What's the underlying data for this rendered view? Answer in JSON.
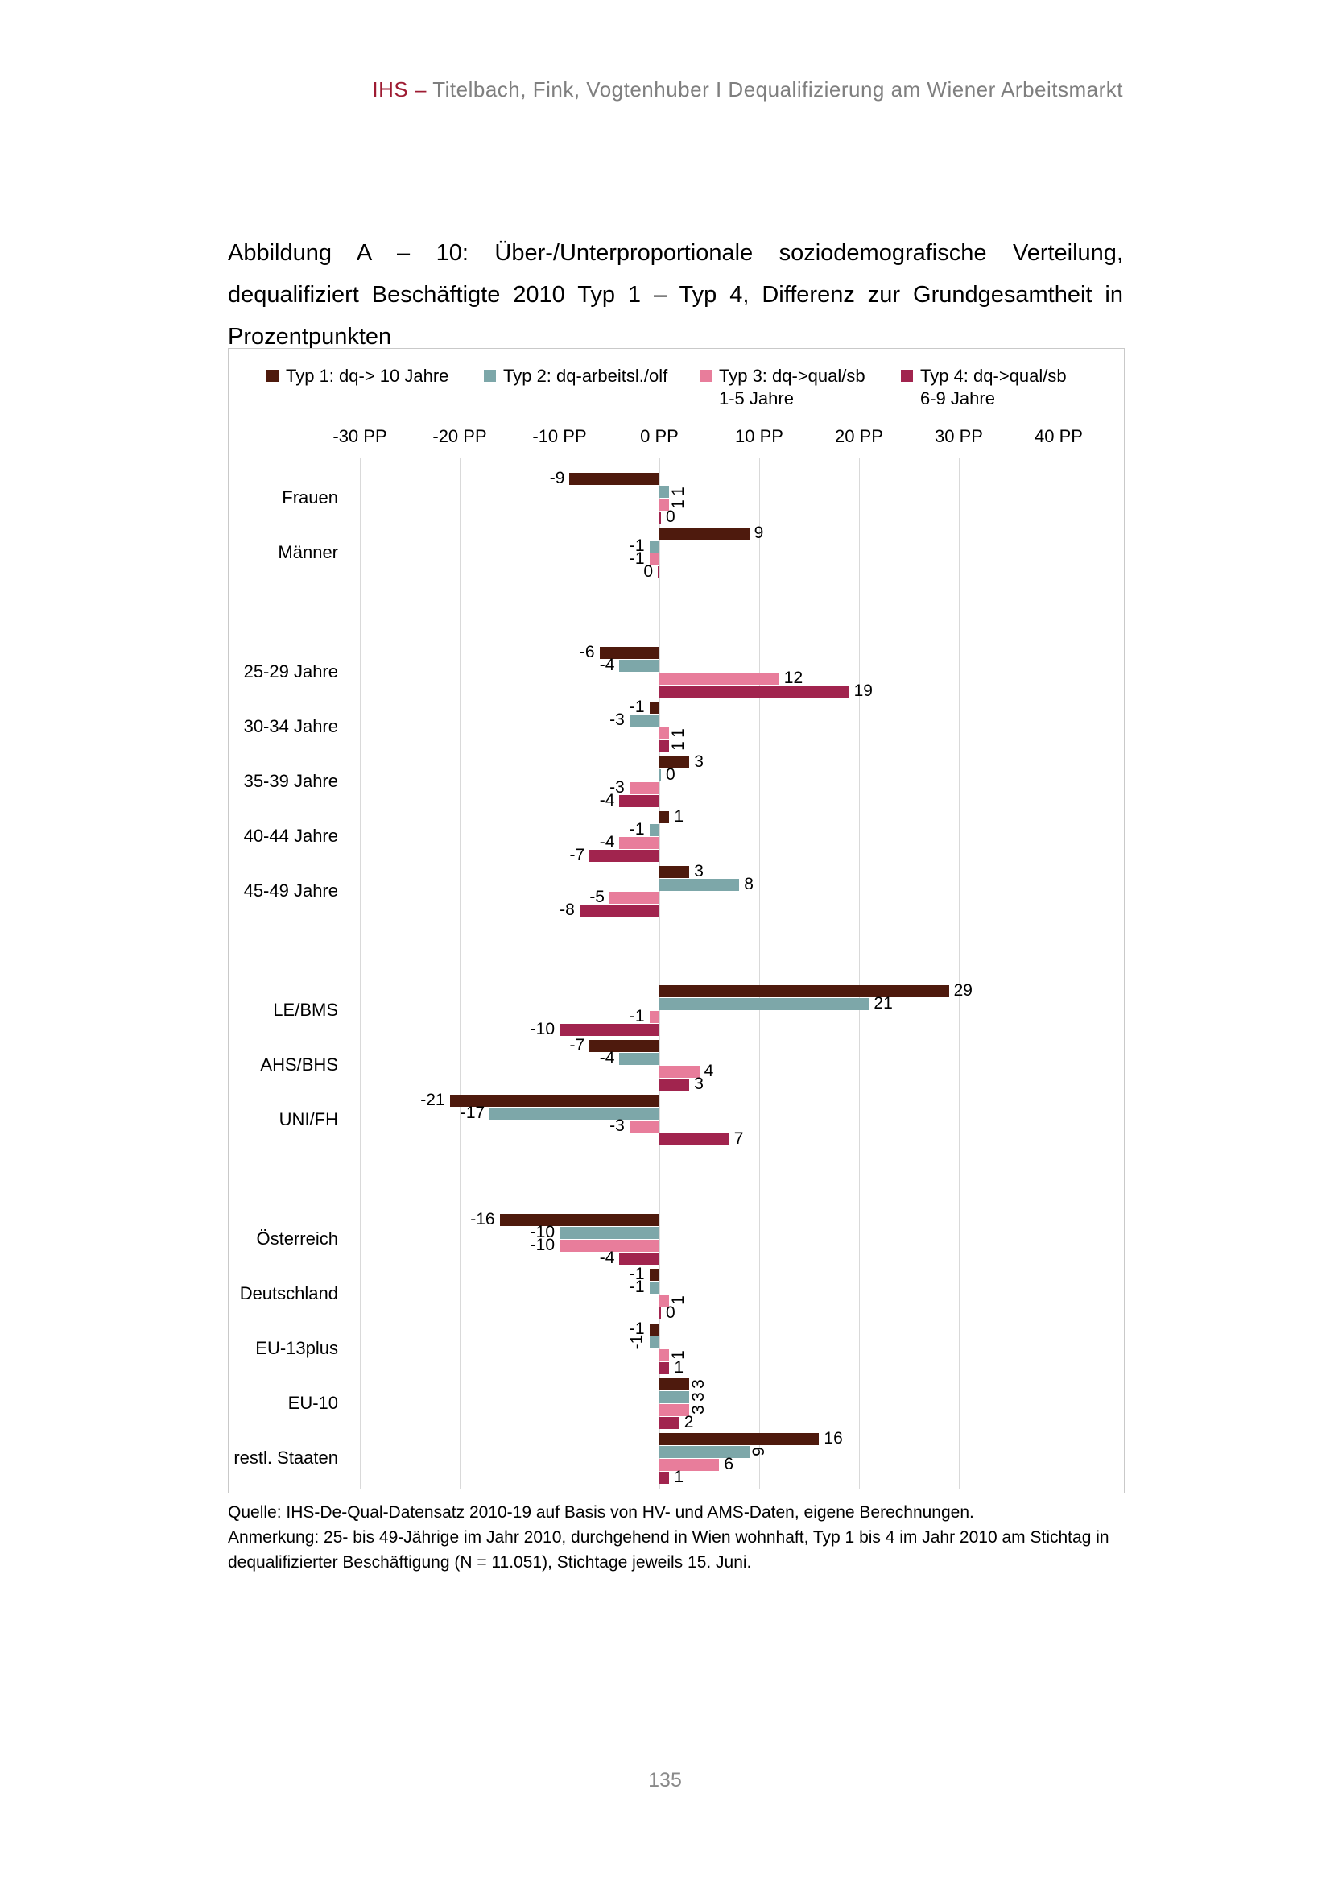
{
  "page": {
    "header": {
      "brand": "IHS",
      "separator": "–",
      "text": "Titelbach, Fink, Vogtenhuber I Dequalifizierung am Wiener Arbeitsmarkt"
    },
    "title": "Abbildung A – 10: Über-/Unterproportionale soziodemografische Verteilung, dequalifiziert Beschäftigte 2010 Typ 1 – Typ 4, Differenz zur Grundgesamtheit in Prozentpunkten",
    "source": "Quelle: IHS-De-Qual-Datensatz 2010-19 auf Basis von HV- und AMS-Daten, eigene Berechnungen.",
    "note": "Anmerkung: 25- bis 49-Jährige im Jahr 2010, durchgehend in Wien wohnhaft, Typ 1 bis 4 im Jahr 2010 am Stichtag in dequalifizierter Beschäftigung (N = 11.051), Stichtage jeweils 15. Juni.",
    "page_number": "135"
  },
  "chart_data": {
    "type": "bar",
    "orientation": "horizontal",
    "unit": "PP",
    "axis": {
      "min": -30,
      "max": 40,
      "step": 10,
      "tick_labels": [
        "-30 PP",
        "-20 PP",
        "-10 PP",
        "0 PP",
        "10 PP",
        "20 PP",
        "30 PP",
        "40 PP"
      ],
      "grid": true
    },
    "legend_position": "top",
    "legend": [
      {
        "line1": "Typ 1: dq-> 10 Jahre",
        "line2": "",
        "color": "#4e1a0d"
      },
      {
        "line1": "Typ 2: dq-arbeitsl./olf",
        "line2": "",
        "color": "#7da7a9"
      },
      {
        "line1": "Typ 3: dq->qual/sb",
        "line2": "1-5 Jahre",
        "color": "#e87d9b"
      },
      {
        "line1": "Typ 4: dq->qual/sb",
        "line2": "6-9 Jahre",
        "color": "#a1244e"
      }
    ],
    "categories": [
      "Frauen",
      "Männer",
      "25-29 Jahre",
      "30-34 Jahre",
      "35-39 Jahre",
      "40-44 Jahre",
      "45-49 Jahre",
      "LE/BMS",
      "AHS/BHS",
      "UNI/FH",
      "Österreich",
      "Deutschland",
      "EU-13plus",
      "EU-10",
      "restl. Staaten"
    ],
    "groups": [
      2,
      5,
      3,
      5
    ],
    "series": [
      {
        "name": "Typ 1: dq-> 10 Jahre",
        "color": "#4e1a0d",
        "values": [
          -9,
          9,
          -6,
          -1,
          3,
          1,
          3,
          29,
          -7,
          -21,
          -16,
          -1,
          -1,
          3,
          16
        ]
      },
      {
        "name": "Typ 2: dq-arbeitsl./olf",
        "color": "#7da7a9",
        "values": [
          1,
          -1,
          -4,
          -3,
          0,
          -1,
          8,
          21,
          -4,
          -17,
          -10,
          -1,
          -1,
          3,
          9
        ]
      },
      {
        "name": "Typ 3: dq->qual/sb 1-5 Jahre",
        "color": "#e87d9b",
        "values": [
          1,
          -1,
          12,
          1,
          -3,
          -4,
          -5,
          -1,
          4,
          -3,
          -10,
          1,
          1,
          3,
          6
        ]
      },
      {
        "name": "Typ 4: dq->qual/sb 6-9 Jahre",
        "color": "#a1244e",
        "values": [
          0,
          0,
          19,
          1,
          -4,
          -7,
          -8,
          -10,
          3,
          7,
          -4,
          0,
          1,
          2,
          1
        ]
      }
    ],
    "rotated_labels": {
      "Frauen": [
        1,
        2
      ],
      "30-34 Jahre": [
        2,
        3
      ],
      "Deutschland": [
        2
      ],
      "EU-13plus": [
        1,
        2
      ],
      "EU-10": [
        0,
        1,
        2
      ],
      "restl. Staaten": [
        1
      ]
    }
  }
}
